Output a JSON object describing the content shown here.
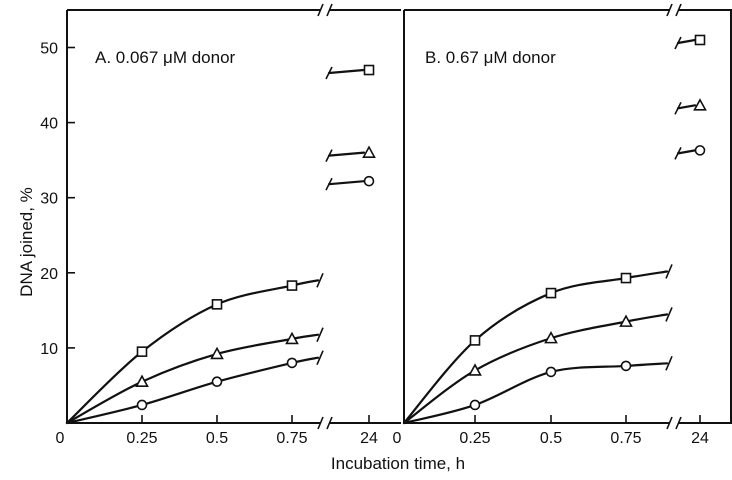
{
  "chart_data": [
    {
      "type": "line",
      "panel_label": "A. 0.067 μM donor",
      "ylabel": "DNA joined, %",
      "xlabel": "Incubation time, h",
      "x_ticks": [
        "0",
        "0.25",
        "0.5",
        "0.75",
        "24"
      ],
      "y_ticks": [
        "10",
        "20",
        "30",
        "40",
        "50"
      ],
      "ylim": [
        0,
        55
      ],
      "series": [
        {
          "marker": "square",
          "x": [
            0,
            0.25,
            0.5,
            0.75,
            24
          ],
          "values": [
            0,
            9.5,
            15.8,
            18.3,
            47
          ]
        },
        {
          "marker": "triangle",
          "x": [
            0,
            0.25,
            0.5,
            0.75,
            24
          ],
          "values": [
            0,
            5.5,
            9.2,
            11.2,
            36
          ]
        },
        {
          "marker": "circle",
          "x": [
            0,
            0.25,
            0.5,
            0.75,
            24
          ],
          "values": [
            0,
            2.4,
            5.5,
            8.0,
            32.2
          ]
        }
      ]
    },
    {
      "type": "line",
      "panel_label": "B. 0.67 μM donor",
      "xlabel": "Incubation time, h",
      "x_ticks": [
        "0",
        "0.25",
        "0.5",
        "0.75",
        "24"
      ],
      "ylim": [
        0,
        55
      ],
      "series": [
        {
          "marker": "square",
          "x": [
            0,
            0.25,
            0.5,
            0.75,
            24
          ],
          "values": [
            0,
            11.0,
            17.3,
            19.3,
            51
          ]
        },
        {
          "marker": "triangle",
          "x": [
            0,
            0.25,
            0.5,
            0.75,
            24
          ],
          "values": [
            0,
            7.0,
            11.3,
            13.5,
            42.3
          ]
        },
        {
          "marker": "circle",
          "x": [
            0,
            0.25,
            0.5,
            0.75,
            24
          ],
          "values": [
            0,
            2.4,
            6.8,
            7.6,
            36.3
          ]
        }
      ]
    }
  ]
}
